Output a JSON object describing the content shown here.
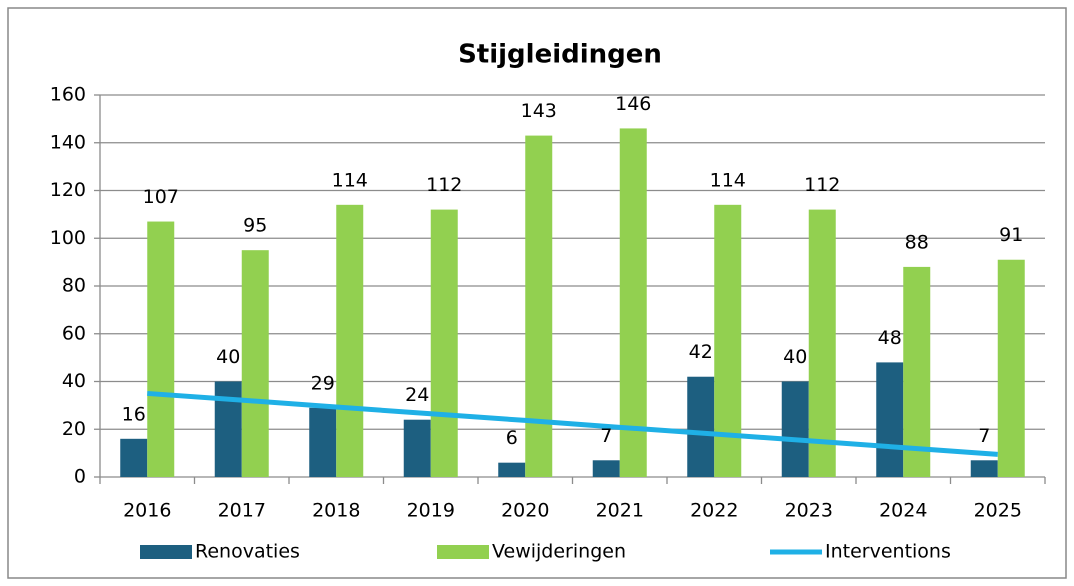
{
  "chart_data": {
    "type": "bar",
    "title": "Stijgleidingen",
    "categories": [
      "2016",
      "2017",
      "2018",
      "2019",
      "2020",
      "2021",
      "2022",
      "2023",
      "2024",
      "2025"
    ],
    "series": [
      {
        "name": "Renovaties",
        "color": "#1d5f80",
        "values": [
          16,
          40,
          29,
          24,
          6,
          7,
          42,
          40,
          48,
          7
        ]
      },
      {
        "name": "Vewijderingen",
        "color": "#92d050",
        "values": [
          107,
          95,
          114,
          112,
          143,
          146,
          114,
          112,
          88,
          91
        ]
      },
      {
        "name": "Interventions",
        "type": "line",
        "color": "#1fb0e6",
        "values": [
          35,
          32.2,
          29.3,
          26.5,
          23.7,
          20.8,
          18,
          15.2,
          12.3,
          9.5
        ]
      }
    ],
    "ylim": [
      0,
      160
    ],
    "yticks": [
      0,
      20,
      40,
      60,
      80,
      100,
      120,
      140,
      160
    ],
    "grid": true,
    "legend": "bottom"
  }
}
